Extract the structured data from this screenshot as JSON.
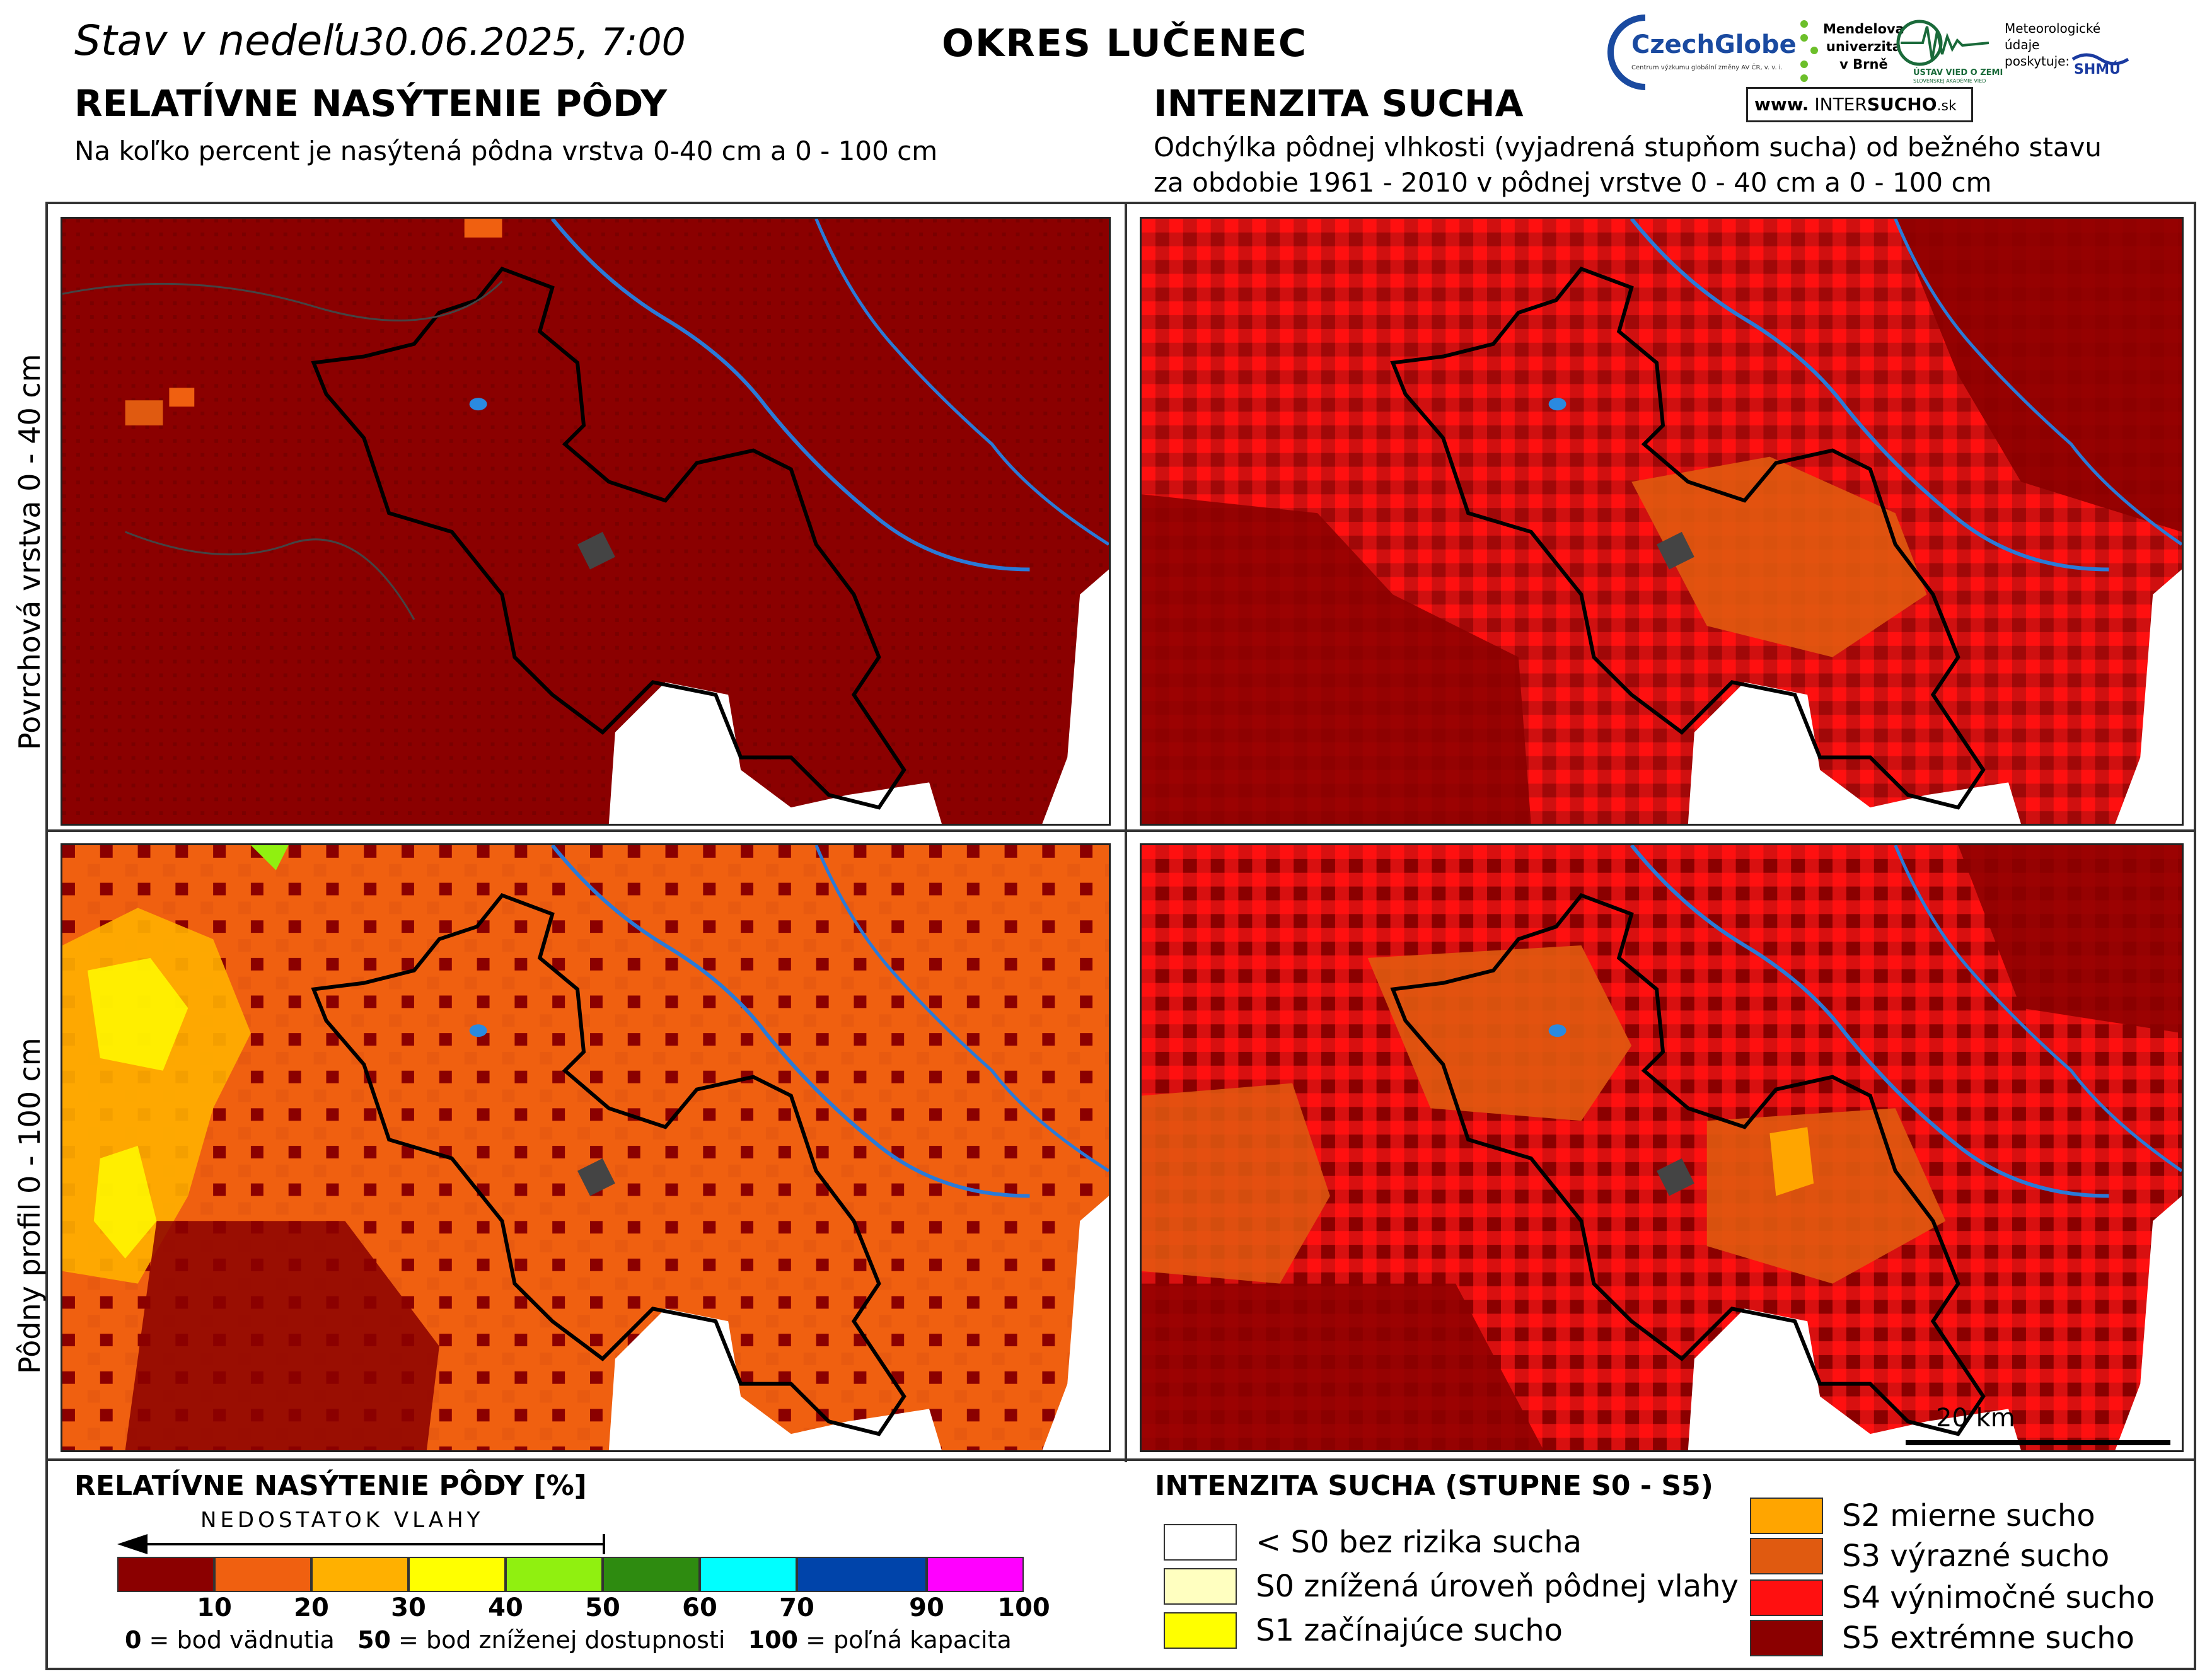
{
  "header": {
    "date_label": "Stav v nedeľu",
    "date_value": "30.06.2025, 7:00",
    "district": "OKRES  LUČENEC"
  },
  "left_section": {
    "title": "RELATÍVNE NASÝTENIE PÔDY",
    "subtitle": "Na koľko percent je nasýtená pôdna vrstva 0-40 cm a 0 - 100 cm"
  },
  "right_section": {
    "title": "INTENZITA SUCHA",
    "subtitle_line1": "Odchýlka pôdnej vlhkosti (vyjadrená stupňom sucha) od bežného stavu",
    "subtitle_line2": "za obdobie 1961 - 2010 v pôdnej vrstve 0 - 40 cm a 0 - 100 cm"
  },
  "logos": {
    "czechglobe": "CzechGlobe",
    "czechglobe_sub": "Centrum výzkumu globální změny AV ČR, v. v. i.",
    "mendelu_1": "Mendelova",
    "mendelu_2": "univerzita",
    "mendelu_3": "v Brně",
    "usvz": "ÚSTAV VIED O ZEMI",
    "usvz_sub": "SLOVENSKEJ AKADÉMIE VIED",
    "meteo_1": "Meteorologické",
    "meteo_2": "údaje",
    "meteo_3": "poskytuje:",
    "shmu": "SHMÚ",
    "intersucho_prefix": "www.",
    "intersucho_inter": "INTER",
    "intersucho_sucho": "SUCHO",
    "intersucho_suffix": ".sk"
  },
  "row_labels": {
    "top": "Povrchová vrstva 0 - 40 cm",
    "bottom": "Pôdny profil 0 - 100 cm"
  },
  "scalebar": {
    "label": "20 km"
  },
  "saturation_legend": {
    "title": "RELATÍVNE NASÝTENIE PÔDY [%]",
    "deficit_label": "NEDOSTATOK VLAHY",
    "colors": [
      "#8b0000",
      "#f06010",
      "#ffb000",
      "#ffff00",
      "#90f010",
      "#2e8b10",
      "#00ffff",
      "#0044aa",
      "#ff00ff"
    ],
    "ticks": [
      "10",
      "20",
      "30",
      "40",
      "50",
      "60",
      "70",
      "90",
      "100"
    ],
    "note_a_num": "0",
    "note_a_text": " = bod vädnutia",
    "note_b_num": "50",
    "note_b_text": " = bod zníženej dostupnosti",
    "note_c_num": "100",
    "note_c_text": " = poľná kapacita"
  },
  "drought_legend": {
    "title": "INTENZITA SUCHA (STUPNE S0 - S5)",
    "items": [
      {
        "label": "< S0 bez rizika sucha",
        "color": "#ffffff"
      },
      {
        "label": "S0 znížená úroveň pôdnej vlahy",
        "color": "#ffffc0"
      },
      {
        "label": "S1 začínajúce sucho",
        "color": "#ffff00"
      },
      {
        "label": "S2 mierne sucho",
        "color": "#ffa500"
      },
      {
        "label": "S3 výrazné sucho",
        "color": "#e05a10"
      },
      {
        "label": "S4 výnimočné sucho",
        "color": "#ff1010"
      },
      {
        "label": "S5 extrémne sucho",
        "color": "#8b0000"
      }
    ]
  }
}
